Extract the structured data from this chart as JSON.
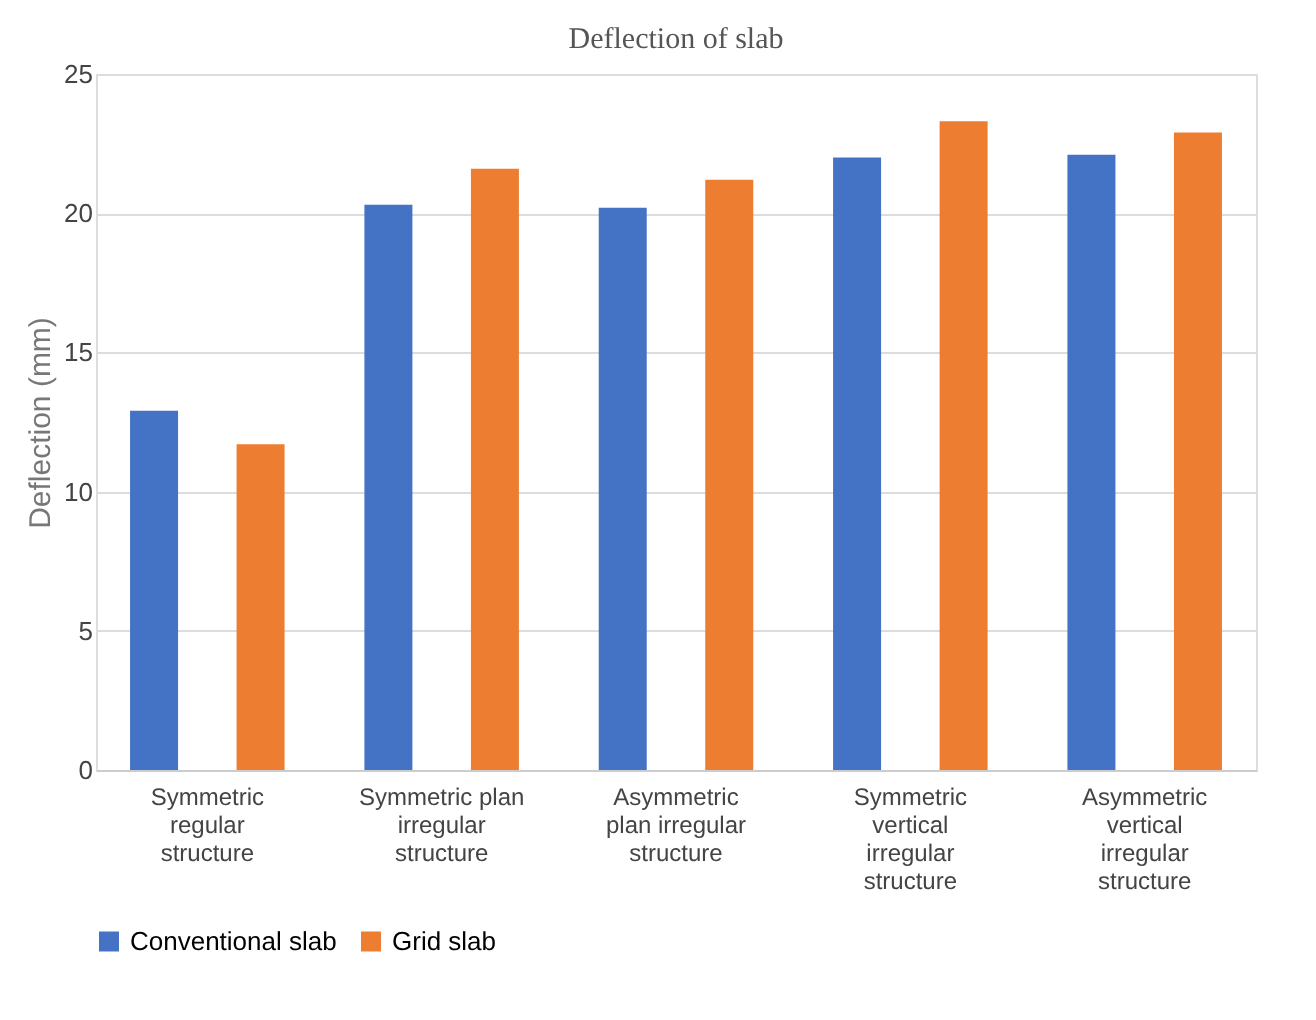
{
  "chart_data": {
    "type": "bar",
    "title": "Deflection of slab",
    "ylabel": "Deflection (mm)",
    "categories": [
      "Symmetric\nregular\nstructure",
      "Symmetric plan\nirregular\nstructure",
      "Asymmetric\nplan irregular\nstructure",
      "Symmetric\nvertical\nirregular\nstructure",
      "Asymmetric\nvertical\nirregular\nstructure"
    ],
    "series": [
      {
        "name": "Conventional slab",
        "color": "#4472c4",
        "values": [
          12.9,
          20.3,
          20.2,
          22.0,
          22.1
        ]
      },
      {
        "name": "Grid slab",
        "color": "#ed7d31",
        "values": [
          11.7,
          21.6,
          21.2,
          23.3,
          22.9
        ]
      }
    ],
    "ylim": [
      0,
      25
    ],
    "yticks": [
      0,
      5,
      10,
      15,
      20,
      25
    ],
    "grid": "y",
    "legend": "bottom"
  }
}
